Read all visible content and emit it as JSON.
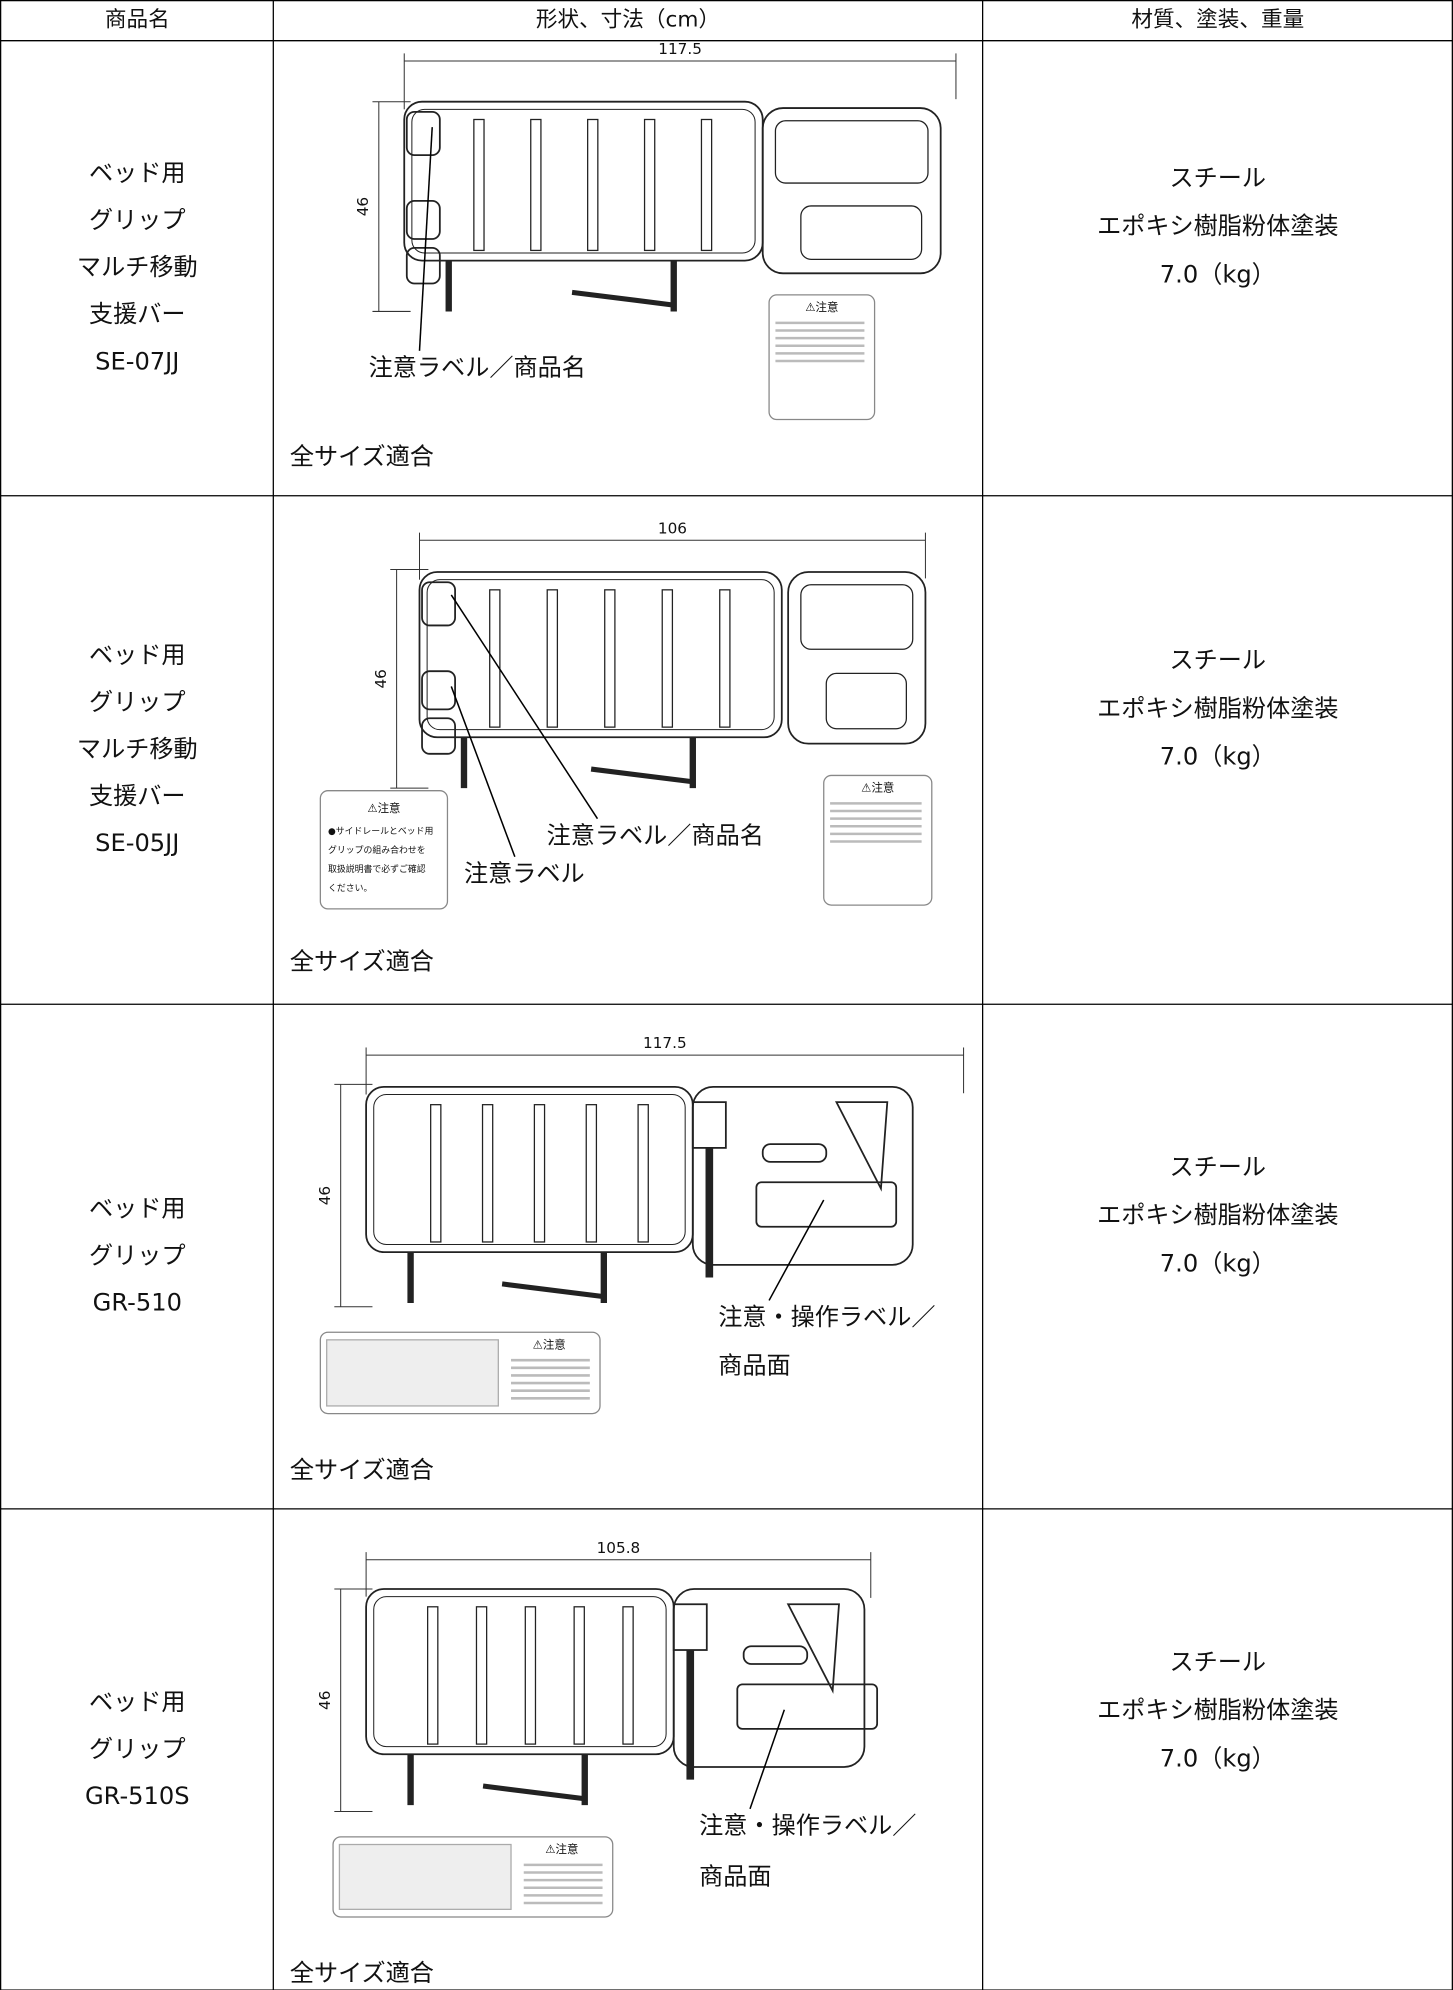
{
  "header": {
    "columns": [
      "商品名",
      "形状、寸法（cm）",
      "材質、塗装、重量"
    ]
  },
  "rows": [
    {
      "name_lines": [
        "ベッド用",
        "グリップ",
        "マルチ移動",
        "支援バー",
        "SE-07JJ"
      ],
      "width_label": "117.5",
      "height_label": "46",
      "callouts": [
        "注意ラベル／商品名"
      ],
      "sticker_title": "⚠注意",
      "fit": "全サイズ適合",
      "material_lines": [
        "スチール",
        "エポキシ樹脂粉体塗装",
        "7.0（kg）"
      ]
    },
    {
      "name_lines": [
        "ベッド用",
        "グリップ",
        "マルチ移動",
        "支援バー",
        "SE-05JJ"
      ],
      "width_label": "106",
      "height_label": "46",
      "callouts": [
        "注意ラベル／商品名",
        "注意ラベル"
      ],
      "sticker_title": "⚠注意",
      "side_sticker": {
        "title": "⚠注意",
        "lines": [
          "●サイドレールとベッド用",
          "グリップの組み合わせを",
          "取扱説明書で必ずご確認",
          "ください。"
        ]
      },
      "fit": "全サイズ適合",
      "material_lines": [
        "スチール",
        "エポキシ樹脂粉体塗装",
        "7.0（kg）"
      ]
    },
    {
      "name_lines": [
        "ベッド用",
        "グリップ",
        "GR-510"
      ],
      "width_label": "117.5",
      "height_label": "46",
      "callouts": [
        "注意・操作ラベル／",
        "商品面"
      ],
      "sticker_title": "⚠注意",
      "fit": "全サイズ適合",
      "material_lines": [
        "スチール",
        "エポキシ樹脂粉体塗装",
        "7.0（kg）"
      ]
    },
    {
      "name_lines": [
        "ベッド用",
        "グリップ",
        "GR-510S"
      ],
      "width_label": "105.8",
      "height_label": "46",
      "callouts": [
        "注意・操作ラベル／",
        "商品面"
      ],
      "sticker_title": "⚠注意",
      "fit": "全サイズ適合",
      "material_lines": [
        "スチール",
        "エポキシ樹脂粉体塗装",
        "7.0（kg）"
      ]
    }
  ]
}
